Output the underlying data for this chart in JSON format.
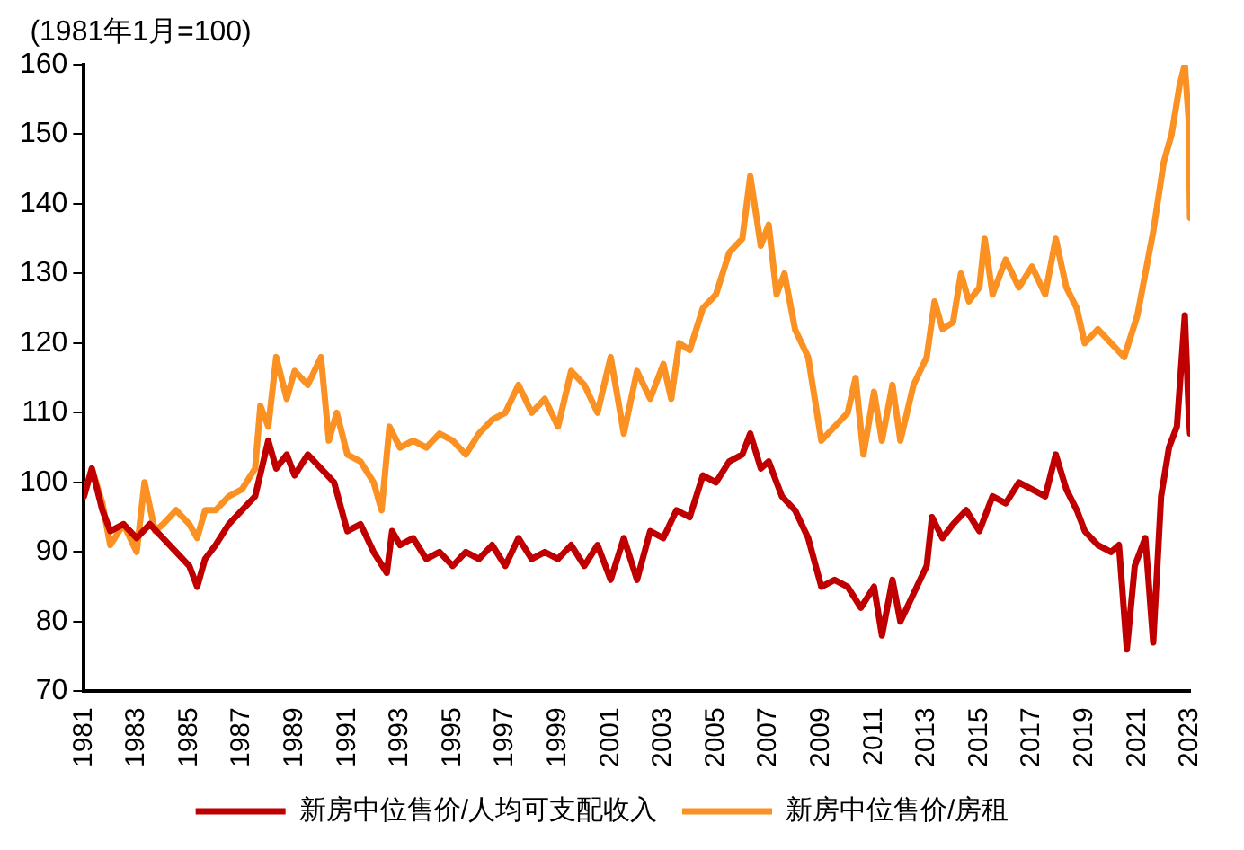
{
  "chart_data": {
    "type": "line",
    "ylabel": "(1981年1月=100)",
    "xlim": [
      1981,
      2023
    ],
    "xticks": [
      1981,
      1983,
      1985,
      1987,
      1989,
      1991,
      1993,
      1995,
      1997,
      1999,
      2001,
      2003,
      2005,
      2007,
      2009,
      2011,
      2013,
      2015,
      2017,
      2019,
      2021,
      2023
    ],
    "ylim": [
      70,
      160
    ],
    "yticks": [
      70,
      80,
      90,
      100,
      110,
      120,
      130,
      140,
      150,
      160
    ],
    "grid": false,
    "legend": "bottom",
    "marker": "none",
    "line_style": "solid",
    "series": [
      {
        "name": "新房中位售价/人均可支配收入",
        "color": "#c00000",
        "x": [
          1981,
          1981.3,
          1981.7,
          1982,
          1982.5,
          1983,
          1983.5,
          1984,
          1984.5,
          1985,
          1985.3,
          1985.6,
          1986,
          1986.5,
          1987,
          1987.5,
          1988,
          1988.3,
          1988.7,
          1989,
          1989.5,
          1990,
          1990.5,
          1991,
          1991.5,
          1992,
          1992.5,
          1992.7,
          1993,
          1993.5,
          1994,
          1994.5,
          1995,
          1995.5,
          1996,
          1996.5,
          1997,
          1997.5,
          1998,
          1998.5,
          1999,
          1999.5,
          2000,
          2000.5,
          2001,
          2001.5,
          2002,
          2002.5,
          2003,
          2003.5,
          2004,
          2004.5,
          2005,
          2005.5,
          2006,
          2006.3,
          2006.7,
          2007,
          2007.5,
          2008,
          2008.5,
          2009,
          2009.5,
          2010,
          2010.5,
          2011,
          2011.3,
          2011.7,
          2012,
          2012.5,
          2013,
          2013.2,
          2013.6,
          2014,
          2014.5,
          2015,
          2015.5,
          2016,
          2016.5,
          2017,
          2017.5,
          2017.9,
          2018.3,
          2018.7,
          2019,
          2019.5,
          2020,
          2020.3,
          2020.6,
          2020.9,
          2021.3,
          2021.6,
          2021.9,
          2022.2,
          2022.5,
          2022.8,
          2022.95,
          2023
        ],
        "values": [
          98,
          102,
          96,
          93,
          94,
          92,
          94,
          92,
          90,
          88,
          85,
          89,
          91,
          94,
          96,
          98,
          106,
          102,
          104,
          101,
          104,
          102,
          100,
          93,
          94,
          90,
          87,
          93,
          91,
          92,
          89,
          90,
          88,
          90,
          89,
          91,
          88,
          92,
          89,
          90,
          89,
          91,
          88,
          91,
          86,
          92,
          86,
          93,
          92,
          96,
          95,
          101,
          100,
          103,
          104,
          107,
          102,
          103,
          98,
          96,
          92,
          85,
          86,
          85,
          82,
          85,
          78,
          86,
          80,
          84,
          88,
          95,
          92,
          94,
          96,
          93,
          98,
          97,
          100,
          99,
          98,
          104,
          99,
          96,
          93,
          91,
          90,
          91,
          76,
          88,
          92,
          77,
          98,
          105,
          108,
          124,
          110,
          107
        ]
      },
      {
        "name": "新房中位售价/房租",
        "color": "#fa9122",
        "x": [
          1981,
          1981.3,
          1981.7,
          1982,
          1982.5,
          1983,
          1983.3,
          1983.7,
          1984,
          1984.5,
          1985,
          1985.3,
          1985.6,
          1986,
          1986.5,
          1987,
          1987.5,
          1987.7,
          1988,
          1988.3,
          1988.7,
          1989,
          1989.5,
          1990,
          1990.3,
          1990.6,
          1991,
          1991.5,
          1992,
          1992.3,
          1992.6,
          1993,
          1993.5,
          1994,
          1994.5,
          1995,
          1995.5,
          1996,
          1996.5,
          1997,
          1997.5,
          1998,
          1998.5,
          1999,
          1999.5,
          2000,
          2000.5,
          2001,
          2001.5,
          2002,
          2002.5,
          2003,
          2003.3,
          2003.6,
          2004,
          2004.5,
          2005,
          2005.5,
          2006,
          2006.3,
          2006.7,
          2007,
          2007.3,
          2007.6,
          2008,
          2008.5,
          2009,
          2009.5,
          2010,
          2010.3,
          2010.6,
          2011,
          2011.3,
          2011.7,
          2012,
          2012.5,
          2013,
          2013.3,
          2013.6,
          2014,
          2014.3,
          2014.6,
          2015,
          2015.2,
          2015.5,
          2016,
          2016.5,
          2017,
          2017.5,
          2017.9,
          2018.3,
          2018.7,
          2019,
          2019.5,
          2020,
          2020.5,
          2021,
          2021.3,
          2021.6,
          2022,
          2022.3,
          2022.6,
          2022.8,
          2022.95,
          2023
        ],
        "values": [
          98,
          102,
          97,
          91,
          94,
          90,
          100,
          93,
          94,
          96,
          94,
          92,
          96,
          96,
          98,
          99,
          102,
          111,
          108,
          118,
          112,
          116,
          114,
          118,
          106,
          110,
          104,
          103,
          100,
          96,
          108,
          105,
          106,
          105,
          107,
          106,
          104,
          107,
          109,
          110,
          114,
          110,
          112,
          108,
          116,
          114,
          110,
          118,
          107,
          116,
          112,
          117,
          112,
          120,
          119,
          125,
          127,
          133,
          135,
          144,
          134,
          137,
          127,
          130,
          122,
          118,
          106,
          108,
          110,
          115,
          104,
          113,
          106,
          114,
          106,
          114,
          118,
          126,
          122,
          123,
          130,
          126,
          128,
          135,
          127,
          132,
          128,
          131,
          127,
          135,
          128,
          125,
          120,
          122,
          120,
          118,
          124,
          130,
          136,
          146,
          150,
          157,
          160,
          152,
          138
        ]
      }
    ]
  }
}
